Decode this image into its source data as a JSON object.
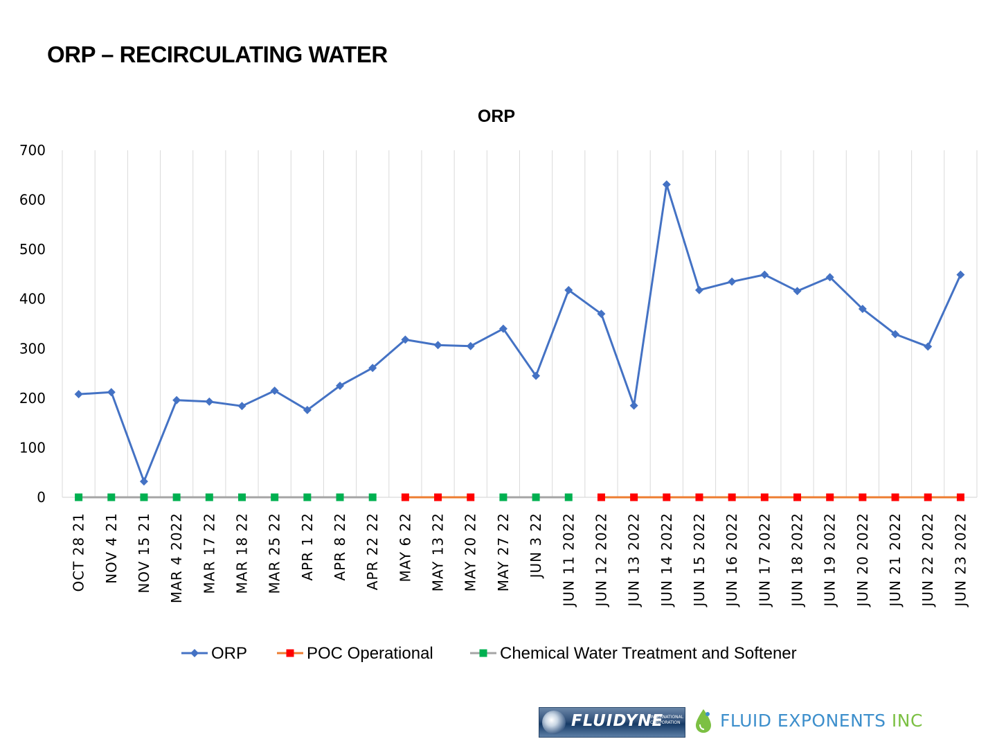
{
  "slide": {
    "title": "ORP – RECIRCULATING WATER"
  },
  "colors": {
    "orp": "#4472c4",
    "poc": "#ed7d31",
    "poc_marker": "#ff0000",
    "chem": "#a5a5a5",
    "chem_marker": "#00b050",
    "grid": "#d9d9d9"
  },
  "chart_data": {
    "type": "line",
    "title": "ORP",
    "xlabel": "",
    "ylabel": "",
    "ylim": [
      0,
      700
    ],
    "yticks": [
      0,
      100,
      200,
      300,
      400,
      500,
      600,
      700
    ],
    "gridlines": "vertical",
    "legend_position": "bottom",
    "categories": [
      "OCT  28  21",
      "NOV  4  21",
      "NOV  15  21",
      "MAR  4  2022",
      "MAR  17  22",
      "MAR  18  22",
      "MAR  25  22",
      "APR  1  22",
      "APR  8  22",
      "APR  22  22",
      "MAY  6  22",
      "MAY   13  22",
      "MAY   20  22",
      "MAY   27  22",
      "JUN  3  22",
      "JUN   11  2022",
      "JUN  12  2022",
      "JUN  13  2022",
      "JUN  14  2022",
      "JUN  15  2022",
      "JUN  16  2022",
      "JUN  17  2022",
      "JUN  18  2022",
      "JUN  19  2022",
      "JUN  20  2022",
      "JUN  21  2022",
      "JUN  22  2022",
      "JUN  23  2022"
    ],
    "series": [
      {
        "name": "ORP",
        "marker": "diamond",
        "values": [
          208,
          212,
          32,
          196,
          193,
          184,
          215,
          176,
          225,
          261,
          318,
          307,
          305,
          340,
          245,
          418,
          370,
          185,
          631,
          418,
          435,
          449,
          416,
          444,
          380,
          329,
          304,
          449
        ]
      },
      {
        "name": "POC Operational",
        "marker": "square",
        "values": [
          null,
          null,
          null,
          null,
          null,
          null,
          null,
          null,
          null,
          null,
          0,
          0,
          0,
          null,
          null,
          null,
          0,
          0,
          0,
          0,
          0,
          0,
          0,
          0,
          0,
          0,
          0,
          0
        ]
      },
      {
        "name": "Chemical Water Treatment and Softener",
        "marker": "square",
        "values": [
          0,
          0,
          0,
          0,
          0,
          0,
          0,
          0,
          0,
          0,
          null,
          null,
          null,
          0,
          0,
          0,
          null,
          null,
          null,
          null,
          null,
          null,
          null,
          null,
          null,
          null,
          null,
          null
        ]
      }
    ]
  },
  "logos": {
    "fluidyne": {
      "name": "FLUIDYNE",
      "sub": "INTERNATIONAL CORPORATION"
    },
    "fluid_exponents": {
      "word1": "FLUID EXPONENTS",
      "word2": "INC"
    }
  }
}
